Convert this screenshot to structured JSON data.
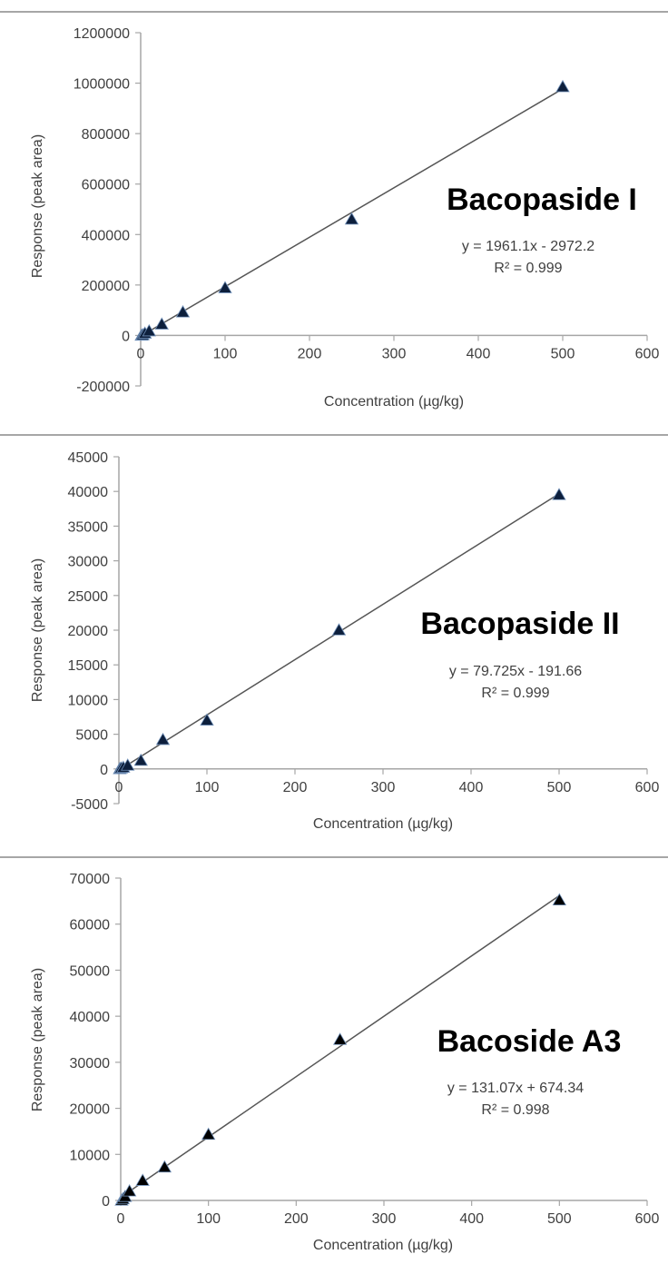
{
  "chart_data": [
    {
      "type": "scatter",
      "annotation_title": "Bacopaside I",
      "equation": "y = 1961.1x - 2972.2",
      "r2": "R² = 0.999",
      "xlabel": "Concentration (µg/kg)",
      "ylabel": "Response (peak area)",
      "xlim": [
        0,
        600
      ],
      "ylim": [
        -200000,
        1200000
      ],
      "x_ticks": [
        "0",
        "100",
        "200",
        "300",
        "400",
        "500",
        "600"
      ],
      "y_ticks": [
        "-200000",
        "0",
        "200000",
        "400000",
        "600000",
        "800000",
        "1000000",
        "1200000"
      ],
      "trendline": {
        "slope": 1961.1,
        "intercept": -2972.2
      },
      "grid": false,
      "marker_color": "#0d1f3c",
      "x": [
        1,
        2.5,
        5,
        10,
        25,
        50,
        100,
        250,
        500
      ],
      "y": [
        0,
        2000,
        8000,
        17000,
        44000,
        92000,
        188000,
        460000,
        985000
      ]
    },
    {
      "type": "scatter",
      "annotation_title": "Bacopaside II",
      "equation": "y = 79.725x - 191.66",
      "r2": "R² = 0.999",
      "xlabel": "Concentration (µg/kg)",
      "ylabel": "Response (peak area)",
      "xlim": [
        0,
        600
      ],
      "ylim": [
        -5000,
        45000
      ],
      "x_ticks": [
        "0",
        "100",
        "200",
        "300",
        "400",
        "500",
        "600"
      ],
      "y_ticks": [
        "-5000",
        "0",
        "5000",
        "10000",
        "15000",
        "20000",
        "25000",
        "30000",
        "35000",
        "40000",
        "45000"
      ],
      "trendline": {
        "slope": 79.725,
        "intercept": -191.66
      },
      "grid": false,
      "marker_color": "#0d1f3c",
      "x": [
        1,
        2.5,
        5,
        10,
        25,
        50,
        100,
        250,
        500
      ],
      "y": [
        0,
        100,
        200,
        500,
        1200,
        4200,
        7000,
        20000,
        39500
      ]
    },
    {
      "type": "scatter",
      "annotation_title": "Bacoside A3",
      "equation": "y = 131.07x + 674.34",
      "r2": "R² = 0.998",
      "xlabel": "Concentration (µg/kg)",
      "ylabel": "Response (peak area)",
      "xlim": [
        0,
        600
      ],
      "ylim": [
        0,
        70000
      ],
      "x_ticks": [
        "0",
        "100",
        "200",
        "300",
        "400",
        "500",
        "600"
      ],
      "y_ticks": [
        "0",
        "10000",
        "20000",
        "30000",
        "40000",
        "50000",
        "60000",
        "70000"
      ],
      "trendline": {
        "slope": 131.07,
        "intercept": 674.34
      },
      "grid": false,
      "marker_color": "#000000",
      "x": [
        1,
        2.5,
        5,
        10,
        25,
        50,
        100,
        250,
        500
      ],
      "y": [
        0,
        300,
        800,
        2000,
        4300,
        7200,
        14300,
        34900,
        65200
      ]
    }
  ]
}
